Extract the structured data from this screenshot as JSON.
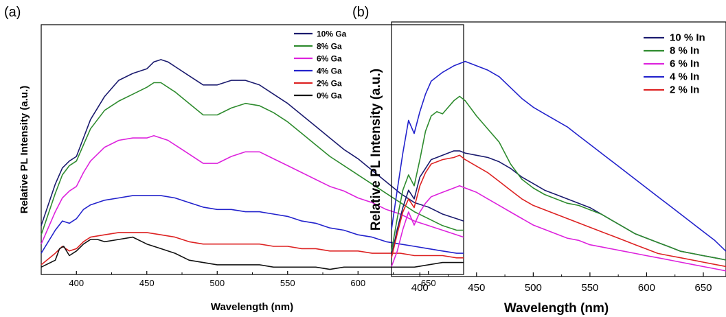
{
  "chart_data": [
    {
      "panel": "(a)",
      "type": "line",
      "xlabel": "Wavelength (nm)",
      "ylabel": "Relative PL Intensity (a.u.)",
      "xlim": [
        375,
        675
      ],
      "ylim": [
        0,
        1
      ],
      "xticks": [
        400,
        450,
        500,
        550,
        600,
        650
      ],
      "grid": false,
      "legend_position": "top-right",
      "series": [
        {
          "name": "10% Ga",
          "color": "#1a1a6e",
          "x": [
            375,
            385,
            390,
            395,
            400,
            405,
            410,
            420,
            430,
            440,
            450,
            455,
            460,
            465,
            470,
            480,
            490,
            500,
            510,
            520,
            530,
            540,
            550,
            560,
            570,
            580,
            590,
            600,
            610,
            620,
            630,
            640,
            650,
            660,
            670,
            675
          ],
          "y": [
            0.2,
            0.38,
            0.45,
            0.48,
            0.5,
            0.58,
            0.66,
            0.76,
            0.83,
            0.86,
            0.88,
            0.91,
            0.92,
            0.91,
            0.89,
            0.85,
            0.81,
            0.81,
            0.83,
            0.83,
            0.81,
            0.77,
            0.73,
            0.68,
            0.63,
            0.58,
            0.53,
            0.49,
            0.44,
            0.39,
            0.34,
            0.3,
            0.28,
            0.25,
            0.23,
            0.22
          ]
        },
        {
          "name": "8% Ga",
          "color": "#2e8b2e",
          "x": [
            375,
            385,
            390,
            395,
            400,
            405,
            410,
            420,
            430,
            440,
            450,
            455,
            460,
            465,
            470,
            480,
            490,
            500,
            510,
            520,
            530,
            540,
            550,
            560,
            570,
            580,
            590,
            600,
            610,
            620,
            630,
            640,
            650,
            660,
            670,
            675
          ],
          "y": [
            0.16,
            0.34,
            0.42,
            0.46,
            0.48,
            0.55,
            0.62,
            0.7,
            0.74,
            0.77,
            0.8,
            0.82,
            0.82,
            0.8,
            0.78,
            0.73,
            0.68,
            0.68,
            0.71,
            0.73,
            0.72,
            0.69,
            0.65,
            0.6,
            0.55,
            0.5,
            0.46,
            0.42,
            0.38,
            0.34,
            0.3,
            0.26,
            0.23,
            0.2,
            0.18,
            0.18
          ]
        },
        {
          "name": "6% Ga",
          "color": "#dd22dd",
          "x": [
            375,
            385,
            390,
            395,
            400,
            405,
            410,
            420,
            430,
            440,
            450,
            455,
            460,
            465,
            470,
            480,
            490,
            500,
            510,
            520,
            530,
            540,
            550,
            560,
            570,
            580,
            590,
            600,
            610,
            620,
            630,
            640,
            650,
            660,
            670,
            675
          ],
          "y": [
            0.12,
            0.26,
            0.32,
            0.35,
            0.37,
            0.43,
            0.48,
            0.54,
            0.57,
            0.58,
            0.58,
            0.59,
            0.58,
            0.57,
            0.55,
            0.51,
            0.47,
            0.47,
            0.5,
            0.52,
            0.52,
            0.49,
            0.46,
            0.43,
            0.4,
            0.37,
            0.35,
            0.32,
            0.3,
            0.27,
            0.25,
            0.22,
            0.2,
            0.18,
            0.16,
            0.15
          ]
        },
        {
          "name": "4% Ga",
          "color": "#2222cc",
          "x": [
            375,
            385,
            390,
            395,
            400,
            405,
            410,
            420,
            430,
            440,
            450,
            460,
            470,
            480,
            490,
            500,
            510,
            520,
            530,
            540,
            550,
            560,
            570,
            580,
            590,
            600,
            610,
            620,
            630,
            640,
            650,
            660,
            670,
            675
          ],
          "y": [
            0.08,
            0.18,
            0.22,
            0.21,
            0.23,
            0.27,
            0.29,
            0.31,
            0.32,
            0.33,
            0.33,
            0.33,
            0.32,
            0.3,
            0.28,
            0.27,
            0.27,
            0.26,
            0.26,
            0.25,
            0.24,
            0.22,
            0.21,
            0.19,
            0.18,
            0.16,
            0.15,
            0.13,
            0.12,
            0.11,
            0.1,
            0.09,
            0.08,
            0.08
          ]
        },
        {
          "name": "2% Ga",
          "color": "#dd2222",
          "x": [
            375,
            385,
            390,
            395,
            400,
            405,
            410,
            420,
            430,
            440,
            450,
            460,
            470,
            480,
            490,
            500,
            510,
            520,
            530,
            540,
            550,
            560,
            570,
            580,
            590,
            600,
            610,
            620,
            630,
            640,
            650,
            660,
            670,
            675
          ],
          "y": [
            0.03,
            0.08,
            0.11,
            0.09,
            0.1,
            0.13,
            0.15,
            0.16,
            0.17,
            0.17,
            0.17,
            0.16,
            0.15,
            0.13,
            0.12,
            0.12,
            0.12,
            0.12,
            0.12,
            0.11,
            0.11,
            0.1,
            0.1,
            0.09,
            0.09,
            0.09,
            0.08,
            0.08,
            0.08,
            0.07,
            0.07,
            0.07,
            0.06,
            0.06
          ]
        },
        {
          "name": "0% Ga",
          "color": "#111111",
          "x": [
            375,
            385,
            388,
            391,
            395,
            400,
            405,
            410,
            415,
            420,
            430,
            440,
            450,
            460,
            470,
            480,
            490,
            500,
            510,
            520,
            530,
            540,
            550,
            560,
            570,
            580,
            590,
            600,
            610,
            620,
            630,
            640,
            650,
            660,
            670,
            675
          ],
          "y": [
            0.02,
            0.05,
            0.1,
            0.11,
            0.07,
            0.09,
            0.12,
            0.14,
            0.14,
            0.13,
            0.14,
            0.15,
            0.12,
            0.1,
            0.08,
            0.05,
            0.04,
            0.03,
            0.03,
            0.03,
            0.03,
            0.02,
            0.02,
            0.02,
            0.02,
            0.01,
            0.02,
            0.02,
            0.02,
            0.02,
            0.02,
            0.02,
            0.03,
            0.04,
            0.04,
            0.04
          ]
        }
      ]
    },
    {
      "panel": "(b)",
      "type": "line",
      "xlabel": "Wavelength (nm)",
      "ylabel": "Relative PL Intensity (a.u.)",
      "xlim": [
        375,
        670
      ],
      "ylim": [
        0,
        1
      ],
      "xticks": [
        400,
        450,
        500,
        550,
        600,
        650
      ],
      "grid": false,
      "legend_position": "top-right",
      "series": [
        {
          "name": "10 % In",
          "color": "#1a1a6e",
          "x": [
            375,
            380,
            385,
            390,
            395,
            400,
            405,
            410,
            420,
            430,
            435,
            440,
            450,
            460,
            470,
            480,
            490,
            500,
            510,
            520,
            530,
            540,
            550,
            560,
            570,
            580,
            590,
            600,
            610,
            620,
            630,
            640,
            650,
            660,
            670
          ],
          "y": [
            0.08,
            0.2,
            0.3,
            0.38,
            0.34,
            0.44,
            0.48,
            0.52,
            0.54,
            0.56,
            0.56,
            0.55,
            0.54,
            0.53,
            0.51,
            0.48,
            0.44,
            0.41,
            0.38,
            0.36,
            0.34,
            0.32,
            0.3,
            0.27,
            0.24,
            0.21,
            0.18,
            0.16,
            0.14,
            0.12,
            0.1,
            0.09,
            0.08,
            0.07,
            0.06
          ]
        },
        {
          "name": "8 % In",
          "color": "#2e8b2e",
          "x": [
            375,
            380,
            385,
            390,
            395,
            400,
            405,
            410,
            415,
            420,
            430,
            435,
            440,
            450,
            460,
            470,
            480,
            490,
            500,
            510,
            520,
            530,
            540,
            550,
            560,
            570,
            580,
            590,
            600,
            610,
            620,
            630,
            640,
            650,
            660,
            670
          ],
          "y": [
            0.1,
            0.25,
            0.38,
            0.45,
            0.4,
            0.52,
            0.65,
            0.72,
            0.74,
            0.73,
            0.79,
            0.81,
            0.79,
            0.72,
            0.66,
            0.6,
            0.5,
            0.43,
            0.39,
            0.36,
            0.34,
            0.32,
            0.31,
            0.29,
            0.27,
            0.24,
            0.21,
            0.18,
            0.16,
            0.14,
            0.12,
            0.1,
            0.09,
            0.08,
            0.07,
            0.06
          ]
        },
        {
          "name": "6 % In",
          "color": "#dd22dd",
          "x": [
            375,
            380,
            385,
            390,
            395,
            400,
            405,
            410,
            420,
            430,
            435,
            440,
            450,
            460,
            470,
            480,
            490,
            500,
            510,
            520,
            530,
            540,
            550,
            560,
            570,
            580,
            590,
            600,
            610,
            620,
            630,
            640,
            650,
            660,
            670
          ],
          "y": [
            0.03,
            0.1,
            0.2,
            0.28,
            0.22,
            0.28,
            0.32,
            0.35,
            0.37,
            0.39,
            0.4,
            0.39,
            0.37,
            0.34,
            0.31,
            0.28,
            0.25,
            0.22,
            0.2,
            0.18,
            0.16,
            0.15,
            0.13,
            0.12,
            0.11,
            0.1,
            0.09,
            0.08,
            0.07,
            0.06,
            0.05,
            0.04,
            0.03,
            0.02,
            0.01
          ]
        },
        {
          "name": "4 % In",
          "color": "#2222cc",
          "x": [
            375,
            380,
            385,
            390,
            395,
            400,
            405,
            410,
            420,
            430,
            440,
            450,
            460,
            470,
            480,
            490,
            500,
            510,
            520,
            530,
            540,
            550,
            560,
            570,
            580,
            590,
            600,
            610,
            620,
            630,
            640,
            650,
            660,
            670
          ],
          "y": [
            0.2,
            0.38,
            0.55,
            0.7,
            0.64,
            0.74,
            0.82,
            0.88,
            0.92,
            0.95,
            0.97,
            0.95,
            0.93,
            0.9,
            0.85,
            0.8,
            0.76,
            0.73,
            0.7,
            0.67,
            0.63,
            0.59,
            0.55,
            0.51,
            0.47,
            0.43,
            0.39,
            0.35,
            0.31,
            0.27,
            0.23,
            0.19,
            0.15,
            0.1
          ]
        },
        {
          "name": "2 % In",
          "color": "#dd2222",
          "x": [
            375,
            380,
            385,
            390,
            395,
            400,
            405,
            410,
            420,
            430,
            435,
            440,
            450,
            460,
            470,
            480,
            490,
            500,
            510,
            520,
            530,
            540,
            550,
            560,
            570,
            580,
            590,
            600,
            610,
            620,
            630,
            640,
            650,
            660,
            670
          ],
          "y": [
            0.07,
            0.18,
            0.28,
            0.34,
            0.3,
            0.4,
            0.46,
            0.5,
            0.52,
            0.53,
            0.54,
            0.52,
            0.49,
            0.46,
            0.42,
            0.38,
            0.34,
            0.31,
            0.29,
            0.27,
            0.25,
            0.23,
            0.21,
            0.19,
            0.17,
            0.15,
            0.13,
            0.11,
            0.09,
            0.08,
            0.07,
            0.06,
            0.05,
            0.04,
            0.03
          ]
        }
      ]
    }
  ]
}
